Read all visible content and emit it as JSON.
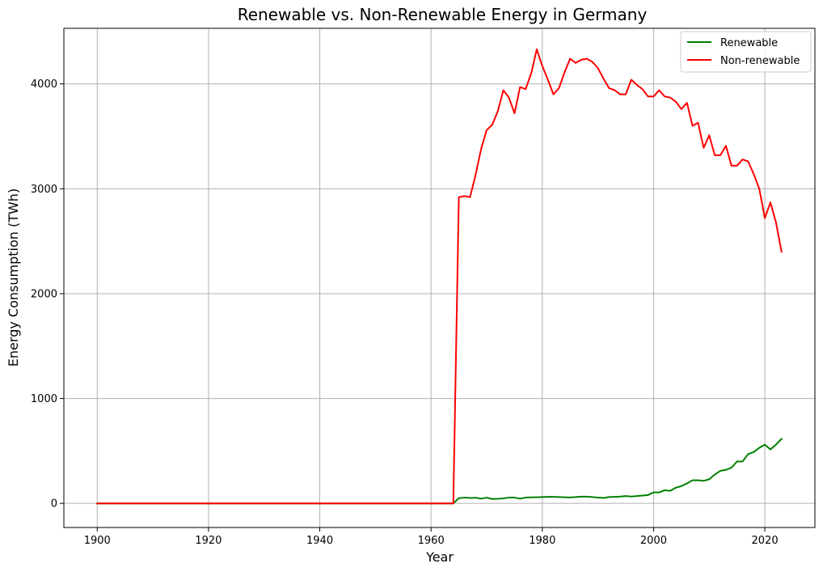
{
  "chart_data": {
    "type": "line",
    "title": "Renewable vs. Non-Renewable Energy in Germany",
    "xlabel": "Year",
    "ylabel": "Energy Consumption (TWh)",
    "xlim": [
      1894,
      2029
    ],
    "ylim": [
      -230,
      4530
    ],
    "xticks": [
      1900,
      1920,
      1940,
      1960,
      1980,
      2000,
      2020
    ],
    "yticks": [
      0,
      1000,
      2000,
      3000,
      4000
    ],
    "grid": true,
    "legend_position": "top-right",
    "series": [
      {
        "name": "Renewable",
        "color": "#008000",
        "x": [
          1900,
          1964,
          1965,
          1966,
          1967,
          1968,
          1969,
          1970,
          1971,
          1972,
          1973,
          1974,
          1975,
          1976,
          1977,
          1978,
          1979,
          1980,
          1981,
          1982,
          1983,
          1984,
          1985,
          1986,
          1987,
          1988,
          1989,
          1990,
          1991,
          1992,
          1993,
          1994,
          1995,
          1996,
          1997,
          1998,
          1999,
          2000,
          2001,
          2002,
          2003,
          2004,
          2005,
          2006,
          2007,
          2008,
          2009,
          2010,
          2011,
          2012,
          2013,
          2014,
          2015,
          2016,
          2017,
          2018,
          2019,
          2020,
          2021,
          2022,
          2023
        ],
        "y": [
          0,
          0,
          50,
          55,
          52,
          54,
          45,
          55,
          42,
          44,
          48,
          55,
          55,
          45,
          55,
          57,
          58,
          60,
          62,
          62,
          60,
          58,
          56,
          60,
          64,
          64,
          60,
          55,
          52,
          60,
          62,
          65,
          70,
          65,
          70,
          75,
          80,
          105,
          105,
          125,
          120,
          150,
          165,
          190,
          220,
          220,
          215,
          230,
          275,
          310,
          320,
          340,
          400,
          400,
          470,
          490,
          530,
          560,
          515,
          560,
          615
        ]
      },
      {
        "name": "Non-renewable",
        "color": "#ff0000",
        "x": [
          1900,
          1964,
          1965,
          1966,
          1967,
          1968,
          1969,
          1970,
          1971,
          1972,
          1973,
          1974,
          1975,
          1976,
          1977,
          1978,
          1979,
          1980,
          1981,
          1982,
          1983,
          1984,
          1985,
          1986,
          1987,
          1988,
          1989,
          1990,
          1991,
          1992,
          1993,
          1994,
          1995,
          1996,
          1997,
          1998,
          1999,
          2000,
          2001,
          2002,
          2003,
          2004,
          2005,
          2006,
          2007,
          2008,
          2009,
          2010,
          2011,
          2012,
          2013,
          2014,
          2015,
          2016,
          2017,
          2018,
          2019,
          2020,
          2021,
          2022,
          2023
        ],
        "y": [
          0,
          0,
          2920,
          2930,
          2920,
          3130,
          3380,
          3560,
          3610,
          3740,
          3940,
          3870,
          3720,
          3970,
          3950,
          4100,
          4330,
          4170,
          4040,
          3900,
          3960,
          4110,
          4240,
          4200,
          4230,
          4240,
          4210,
          4150,
          4050,
          3960,
          3940,
          3900,
          3900,
          4040,
          3990,
          3950,
          3880,
          3880,
          3940,
          3880,
          3870,
          3830,
          3760,
          3820,
          3600,
          3630,
          3390,
          3510,
          3320,
          3320,
          3410,
          3220,
          3220,
          3280,
          3260,
          3140,
          3000,
          2720,
          2870,
          2680,
          2400
        ]
      }
    ]
  }
}
